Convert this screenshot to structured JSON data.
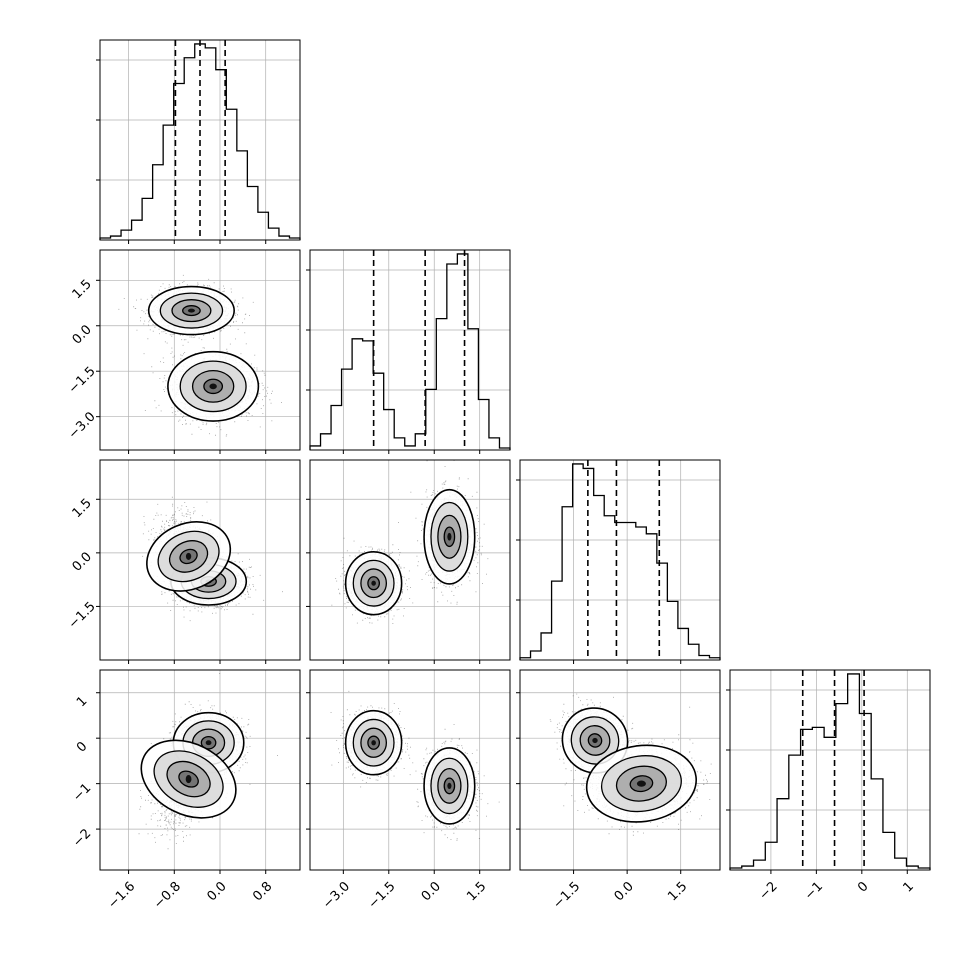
{
  "chart_data": {
    "type": "corner",
    "title": "",
    "parameters": [
      {
        "range": [
          -2.1,
          1.4
        ],
        "ticks": [
          -1.6,
          -0.8,
          0.0,
          0.8
        ],
        "tick_labels": [
          "−1.6",
          "−0.8",
          "0.0",
          "0.8"
        ],
        "quantiles": [
          -0.78,
          -0.35,
          0.09
        ]
      },
      {
        "range": [
          -4.1,
          2.5
        ],
        "ticks": [
          -3.0,
          -1.5,
          0.0,
          1.5
        ],
        "tick_labels": [
          "−3.0",
          "−1.5",
          "0.0",
          "1.5"
        ],
        "quantiles": [
          -2.0,
          -0.3,
          1.0
        ]
      },
      {
        "range": [
          -3.0,
          2.6
        ],
        "ticks": [
          -1.5,
          0.0,
          1.5
        ],
        "tick_labels": [
          "−1.5",
          "0.0",
          "1.5"
        ],
        "quantiles": [
          -1.1,
          -0.3,
          0.9
        ]
      },
      {
        "range": [
          -2.9,
          1.5
        ],
        "ticks": [
          -2,
          -1,
          0,
          1
        ],
        "tick_labels": [
          "−2",
          "−1",
          "0",
          "1"
        ],
        "quantiles": [
          -1.3,
          -0.6,
          0.05
        ]
      }
    ],
    "histograms": [
      {
        "counts": [
          1,
          2,
          5,
          10,
          21,
          38,
          58,
          79,
          92,
          99,
          97,
          86,
          66,
          45,
          27,
          14,
          6,
          2,
          1
        ]
      },
      {
        "counts": [
          2,
          8,
          22,
          40,
          55,
          54,
          38,
          20,
          6,
          2,
          8,
          30,
          65,
          92,
          97,
          60,
          25,
          6,
          1
        ]
      },
      {
        "counts": [
          1,
          4,
          12,
          35,
          68,
          87,
          85,
          73,
          64,
          61,
          61,
          59,
          56,
          43,
          26,
          14,
          7,
          2,
          1
        ]
      },
      {
        "counts": [
          1,
          2,
          5,
          14,
          36,
          58,
          71,
          72,
          67,
          84,
          99,
          79,
          46,
          19,
          6,
          2,
          1
        ]
      }
    ],
    "pairs": [
      {
        "x": 0,
        "y": 1,
        "modes": [
          {
            "mean": [
              -0.5,
              0.5
            ],
            "sd": [
              0.34,
              0.36
            ],
            "rho": 0
          },
          {
            "mean": [
              -0.12,
              -2.0
            ],
            "sd": [
              0.36,
              0.52
            ],
            "rho": 0
          }
        ]
      },
      {
        "x": 0,
        "y": 2,
        "modes": [
          {
            "mean": [
              -0.2,
              -0.8
            ],
            "sd": [
              0.3,
              0.3
            ],
            "rho": 0
          },
          {
            "mean": [
              -0.55,
              -0.1
            ],
            "sd": [
              0.26,
              0.55
            ],
            "rho": -0.3
          }
        ]
      },
      {
        "x": 1,
        "y": 2,
        "modes": [
          {
            "mean": [
              -2.0,
              -0.85
            ],
            "sd": [
              0.42,
              0.4
            ],
            "rho": 0
          },
          {
            "mean": [
              0.5,
              0.45
            ],
            "sd": [
              0.38,
              0.6
            ],
            "rho": 0
          }
        ]
      },
      {
        "x": 0,
        "y": 3,
        "modes": [
          {
            "mean": [
              -0.2,
              -0.1
            ],
            "sd": [
              0.28,
              0.3
            ],
            "rho": 0
          },
          {
            "mean": [
              -0.55,
              -0.9
            ],
            "sd": [
              0.28,
              0.5
            ],
            "rho": 0.5
          }
        ]
      },
      {
        "x": 1,
        "y": 3,
        "modes": [
          {
            "mean": [
              -2.0,
              -0.1
            ],
            "sd": [
              0.42,
              0.32
            ],
            "rho": 0
          },
          {
            "mean": [
              0.5,
              -1.05
            ],
            "sd": [
              0.38,
              0.38
            ],
            "rho": 0
          }
        ]
      },
      {
        "x": 2,
        "y": 3,
        "modes": [
          {
            "mean": [
              -0.9,
              -0.05
            ],
            "sd": [
              0.42,
              0.32
            ],
            "rho": -0.2
          },
          {
            "mean": [
              0.4,
              -1.0
            ],
            "sd": [
              0.7,
              0.38
            ],
            "rho": 0.1
          }
        ]
      }
    ],
    "grid": true,
    "colors": {
      "axes": "#000000",
      "grid": "#b0b0b0",
      "points": "#333333",
      "quantile_line": "#000000"
    }
  }
}
